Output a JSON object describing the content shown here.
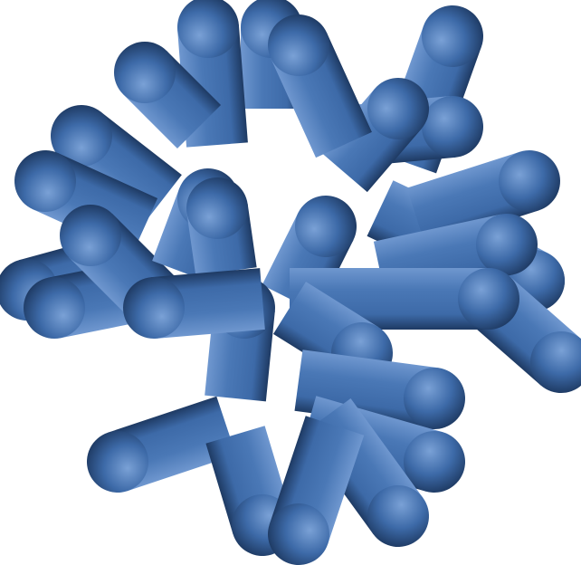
{
  "scene": {
    "subject": "branched-rod-cluster",
    "background_color": "#ffffff",
    "rod_color": "#3d6aa8",
    "rod_shadow_color": "#1e3a63",
    "rod_highlight_color": "#6f97cf",
    "rod_count": 30
  }
}
